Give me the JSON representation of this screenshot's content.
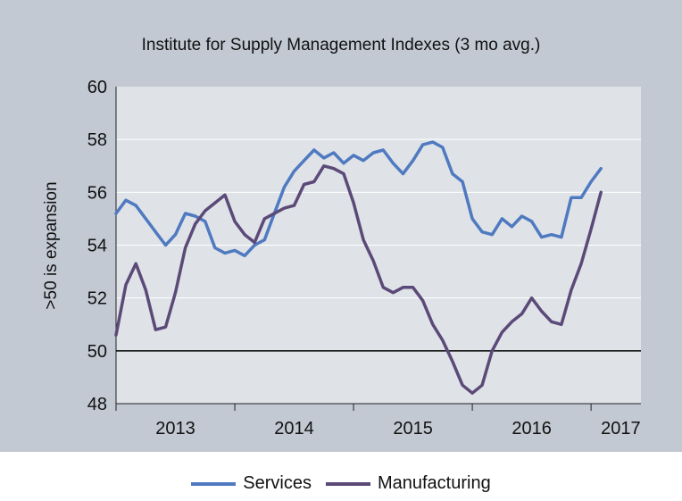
{
  "chart_data": {
    "type": "line",
    "title": "Institute for Supply Management Indexes (3 mo avg.)",
    "xlabel": "",
    "ylabel": ">50 is expansion",
    "ylim": [
      48,
      60
    ],
    "yticks": [
      "48",
      "50",
      "52",
      "54",
      "56",
      "58",
      "60"
    ],
    "xticks": [
      {
        "label": "2013",
        "x": 2013.5
      },
      {
        "label": "2014",
        "x": 2014.5
      },
      {
        "label": "2015",
        "x": 2015.5
      },
      {
        "label": "2016",
        "x": 2016.5
      },
      {
        "label": "2017",
        "x": 2017.25
      }
    ],
    "xlim": [
      2013.0,
      2017.42
    ],
    "reference_line": 50,
    "grid": "horizontal",
    "legend_position": "bottom",
    "series": [
      {
        "name": "Services",
        "color": "#4f7ac0",
        "x": [
          2013.0,
          2013.083,
          2013.167,
          2013.25,
          2013.333,
          2013.417,
          2013.5,
          2013.583,
          2013.667,
          2013.75,
          2013.833,
          2013.917,
          2014.0,
          2014.083,
          2014.167,
          2014.25,
          2014.333,
          2014.417,
          2014.5,
          2014.583,
          2014.667,
          2014.75,
          2014.833,
          2014.917,
          2015.0,
          2015.083,
          2015.167,
          2015.25,
          2015.333,
          2015.417,
          2015.5,
          2015.583,
          2015.667,
          2015.75,
          2015.833,
          2015.917,
          2016.0,
          2016.083,
          2016.167,
          2016.25,
          2016.333,
          2016.417,
          2016.5,
          2016.583,
          2016.667,
          2016.75,
          2016.833,
          2016.917,
          2017.0,
          2017.083,
          2017.167
        ],
        "values": [
          55.2,
          55.7,
          55.5,
          55.0,
          54.5,
          54.0,
          54.4,
          55.2,
          55.1,
          54.9,
          53.9,
          53.7,
          53.8,
          53.6,
          54.0,
          54.2,
          55.2,
          56.2,
          56.8,
          57.2,
          57.6,
          57.3,
          57.5,
          57.1,
          57.4,
          57.2,
          57.5,
          57.6,
          57.1,
          56.7,
          57.2,
          57.8,
          57.9,
          57.7,
          56.7,
          56.4,
          55.0,
          54.5,
          54.4,
          55.0,
          54.7,
          55.1,
          54.9,
          54.3,
          54.4,
          54.3,
          55.8,
          55.8,
          56.4,
          56.9,
          null
        ]
      },
      {
        "name": "Manufacturing",
        "color": "#5b4a78",
        "x": [
          2013.0,
          2013.083,
          2013.167,
          2013.25,
          2013.333,
          2013.417,
          2013.5,
          2013.583,
          2013.667,
          2013.75,
          2013.833,
          2013.917,
          2014.0,
          2014.083,
          2014.167,
          2014.25,
          2014.333,
          2014.417,
          2014.5,
          2014.583,
          2014.667,
          2014.75,
          2014.833,
          2014.917,
          2015.0,
          2015.083,
          2015.167,
          2015.25,
          2015.333,
          2015.417,
          2015.5,
          2015.583,
          2015.667,
          2015.75,
          2015.833,
          2015.917,
          2016.0,
          2016.083,
          2016.167,
          2016.25,
          2016.333,
          2016.417,
          2016.5,
          2016.583,
          2016.667,
          2016.75,
          2016.833,
          2016.917,
          2017.0,
          2017.083,
          2017.167
        ],
        "values": [
          50.6,
          52.5,
          53.3,
          52.3,
          50.8,
          50.9,
          52.2,
          53.9,
          54.8,
          55.3,
          55.6,
          55.9,
          54.9,
          54.4,
          54.1,
          55.0,
          55.2,
          55.4,
          55.5,
          56.3,
          56.4,
          57.0,
          56.9,
          56.7,
          55.6,
          54.2,
          53.4,
          52.4,
          52.2,
          52.4,
          52.4,
          51.9,
          51.0,
          50.4,
          49.6,
          48.7,
          48.4,
          48.7,
          50.0,
          50.7,
          51.1,
          51.4,
          52.0,
          51.5,
          51.1,
          51.0,
          52.3,
          53.3,
          54.6,
          56.0,
          null
        ]
      }
    ]
  }
}
